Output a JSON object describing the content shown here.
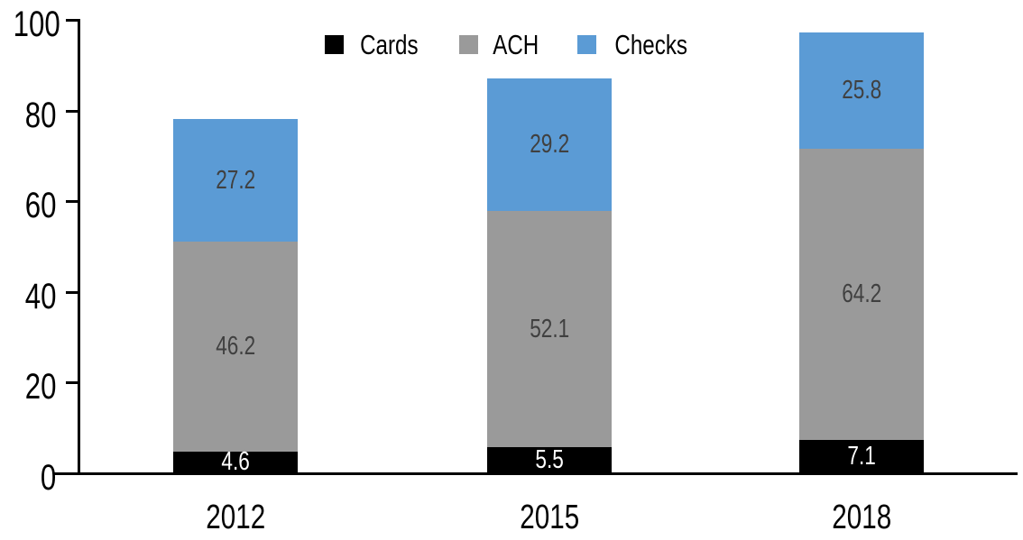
{
  "chart_data": {
    "type": "bar",
    "stacked": true,
    "title": "",
    "xlabel": "",
    "ylabel": "",
    "categories": [
      "2012",
      "2015",
      "2018"
    ],
    "series": [
      {
        "name": "Cards",
        "color": "#000000",
        "label_color": "#ffffff",
        "values": [
          4.6,
          5.5,
          7.1
        ]
      },
      {
        "name": "ACH",
        "color": "#9a9a9a",
        "label_color": "#404040",
        "values": [
          46.2,
          52.1,
          64.2
        ]
      },
      {
        "name": "Checks",
        "color": "#5b9bd5",
        "label_color": "#404040",
        "values": [
          27.2,
          29.2,
          25.8
        ]
      }
    ],
    "totals": [
      78.0,
      86.8,
      97.1
    ],
    "ylim": [
      0,
      100
    ],
    "yticks": [
      0,
      20,
      40,
      60,
      80,
      100
    ],
    "grid": false,
    "legend_position": "top",
    "axis_color": "#000000",
    "background_color": "#ffffff"
  }
}
